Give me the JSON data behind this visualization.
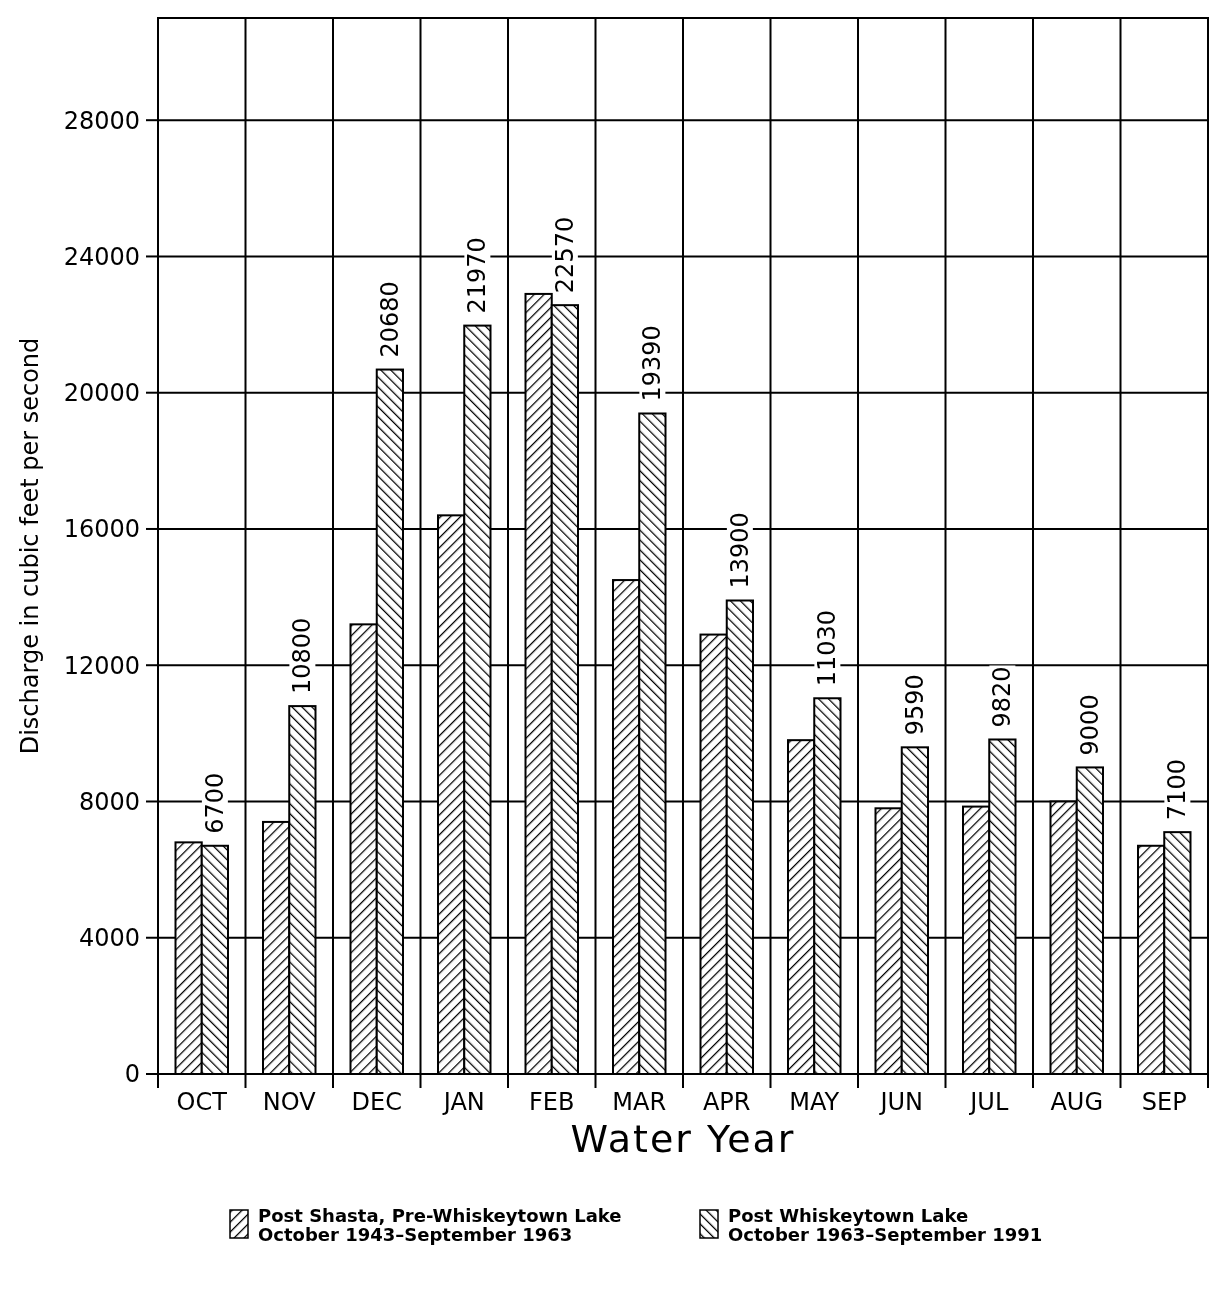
{
  "chart_data": {
    "type": "bar",
    "xlabel": "Water Year",
    "ylabel": "Discharge in cubic feet per second",
    "categories": [
      "OCT",
      "NOV",
      "DEC",
      "JAN",
      "FEB",
      "MAR",
      "APR",
      "MAY",
      "JUN",
      "JUL",
      "AUG",
      "SEP"
    ],
    "series": [
      {
        "name": "Post Shasta, Pre-Whiskeytown Lake\nOctober 1943–September 1963",
        "color": "#000000",
        "values": [
          6800,
          7400,
          13200,
          16400,
          22900,
          14500,
          12900,
          9800,
          7800,
          7850,
          8000,
          6700
        ]
      },
      {
        "name": "Post Whiskeytown Lake\nOctober 1963–September 1991",
        "color": "#000000",
        "values": [
          6700,
          10800,
          20680,
          21970,
          22570,
          19390,
          13900,
          11030,
          9590,
          9820,
          9000,
          7100
        ],
        "value_labels": [
          "6700",
          "10800",
          "20680",
          "21970",
          "22570",
          "19390",
          "13900",
          "11030",
          "9590",
          "9820",
          "9000",
          "7100"
        ]
      }
    ],
    "ylim": [
      0,
      31000
    ],
    "yticks": [
      0,
      4000,
      8000,
      12000,
      16000,
      20000,
      24000,
      28000
    ],
    "grid": true,
    "legend": "bottom"
  }
}
